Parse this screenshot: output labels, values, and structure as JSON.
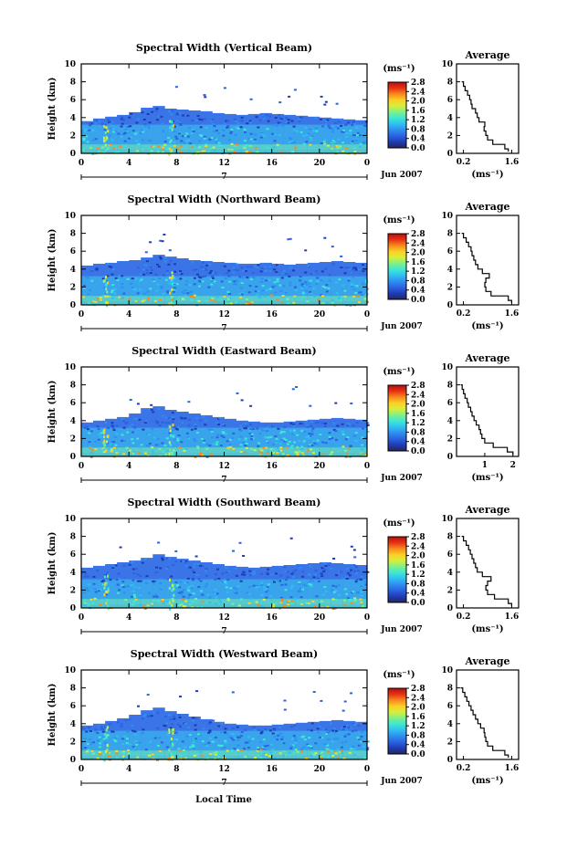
{
  "colors": {
    "scale": [
      "#26265a",
      "#1e3cb4",
      "#2b62e0",
      "#2f8ef0",
      "#30bff2",
      "#3ee8d2",
      "#7ef08a",
      "#d6ef3a",
      "#fbd028",
      "#f88a1c",
      "#e63214",
      "#b80e0e"
    ],
    "echo_low": "#3a74e6",
    "echo_mid": "#3ab4ee",
    "echo_high": "#5ed6c4"
  },
  "colorbar": {
    "unit": "(ms⁻¹)",
    "ticks": [
      "2.8",
      "2.4",
      "2.0",
      "1.6",
      "1.2",
      "0.8",
      "0.4",
      "0.0"
    ]
  },
  "profile": {
    "title": "Average",
    "unit": "(ms⁻¹)"
  },
  "time_axis": {
    "date_label": "Jun 2007",
    "day_label": "7",
    "xlabel": "Local Time"
  },
  "chart_data": [
    {
      "type": "heatmap",
      "title": "Spectral Width (Vertical Beam)",
      "ylabel": "Height (km)",
      "x_ticks": [
        "0",
        "4",
        "8",
        "12",
        "16",
        "20",
        "0"
      ],
      "y_ticks": [
        "0",
        "2",
        "4",
        "6",
        "8",
        "10"
      ],
      "xlim": [
        0,
        24
      ],
      "ylim": [
        0,
        10
      ],
      "echo_top_km": [
        3.6,
        3.9,
        4.1,
        4.3,
        4.6,
        5.1,
        5.3,
        5.0,
        4.9,
        4.8,
        4.7,
        4.5,
        4.4,
        4.3,
        4.4,
        4.5,
        4.4,
        4.3,
        4.2,
        4.1,
        4.0,
        3.9,
        3.8,
        3.7
      ],
      "profile_x_ticks": [
        "0.2",
        "1.6"
      ],
      "profile_xlim": [
        0,
        1.8
      ],
      "profile": {
        "height_km": [
          0.2,
          0.5,
          1.0,
          1.5,
          2.0,
          2.5,
          3.0,
          3.5,
          4.0,
          4.5,
          5.0,
          5.5,
          6.0,
          6.5,
          7.0,
          7.5,
          8.0
        ],
        "width_ms": [
          1.5,
          1.4,
          1.05,
          0.9,
          0.85,
          0.8,
          0.82,
          0.65,
          0.6,
          0.55,
          0.45,
          0.42,
          0.38,
          0.32,
          0.25,
          0.2,
          0.15
        ]
      }
    },
    {
      "type": "heatmap",
      "title": "Spectral Width (Northward Beam)",
      "ylabel": "Height (km)",
      "x_ticks": [
        "0",
        "4",
        "8",
        "12",
        "16",
        "20",
        "0"
      ],
      "y_ticks": [
        "0",
        "2",
        "4",
        "6",
        "8",
        "10"
      ],
      "xlim": [
        0,
        24
      ],
      "ylim": [
        0,
        10
      ],
      "echo_top_km": [
        4.4,
        4.6,
        4.7,
        4.9,
        5.0,
        5.3,
        5.6,
        5.4,
        5.2,
        5.0,
        4.9,
        4.8,
        4.7,
        4.6,
        4.6,
        4.7,
        4.6,
        4.5,
        4.6,
        4.7,
        4.8,
        4.9,
        4.8,
        4.7
      ],
      "profile_x_ticks": [
        "0.2",
        "1.6"
      ],
      "profile_xlim": [
        0,
        1.8
      ],
      "profile": {
        "height_km": [
          0.2,
          0.5,
          1.0,
          1.5,
          2.0,
          2.5,
          3.0,
          3.5,
          4.0,
          4.5,
          5.0,
          5.5,
          6.0,
          6.5,
          7.0,
          7.5,
          8.0
        ],
        "width_ms": [
          1.6,
          1.5,
          1.0,
          0.85,
          0.82,
          0.85,
          0.95,
          0.75,
          0.62,
          0.55,
          0.5,
          0.45,
          0.42,
          0.35,
          0.28,
          0.2,
          0.15
        ]
      }
    },
    {
      "type": "heatmap",
      "title": "Spectral Width (Eastward Beam)",
      "ylabel": "Height (km)",
      "x_ticks": [
        "0",
        "4",
        "8",
        "12",
        "16",
        "20",
        "0"
      ],
      "y_ticks": [
        "0",
        "2",
        "4",
        "6",
        "8",
        "10"
      ],
      "xlim": [
        0,
        24
      ],
      "ylim": [
        0,
        10
      ],
      "echo_top_km": [
        3.8,
        4.0,
        4.2,
        4.4,
        4.8,
        5.4,
        5.6,
        5.2,
        5.0,
        4.8,
        4.6,
        4.4,
        4.2,
        4.0,
        3.9,
        3.8,
        3.8,
        3.9,
        4.0,
        4.1,
        4.2,
        4.3,
        4.2,
        4.1
      ],
      "profile_x_ticks": [
        "1",
        "2"
      ],
      "profile_xlim": [
        0,
        2.2
      ],
      "profile": {
        "height_km": [
          0.2,
          0.5,
          1.0,
          1.5,
          2.0,
          2.5,
          3.0,
          3.5,
          4.0,
          4.5,
          5.0,
          5.5,
          6.0,
          6.5,
          7.0,
          7.5,
          8.0
        ],
        "width_ms": [
          2.0,
          1.8,
          1.3,
          1.0,
          0.9,
          0.85,
          0.8,
          0.7,
          0.62,
          0.55,
          0.5,
          0.42,
          0.38,
          0.3,
          0.25,
          0.2,
          0.15
        ]
      }
    },
    {
      "type": "heatmap",
      "title": "Spectral Width (Southward Beam)",
      "ylabel": "Height (km)",
      "x_ticks": [
        "0",
        "4",
        "8",
        "12",
        "16",
        "20",
        "0"
      ],
      "y_ticks": [
        "0",
        "2",
        "4",
        "6",
        "8",
        "10"
      ],
      "xlim": [
        0,
        24
      ],
      "ylim": [
        0,
        10
      ],
      "echo_top_km": [
        4.5,
        4.7,
        4.9,
        5.1,
        5.3,
        5.6,
        6.0,
        5.7,
        5.5,
        5.3,
        5.1,
        4.9,
        4.7,
        4.6,
        4.5,
        4.6,
        4.7,
        4.8,
        4.9,
        5.0,
        5.1,
        5.0,
        4.9,
        4.8
      ],
      "profile_x_ticks": [
        "0.2",
        "1.6"
      ],
      "profile_xlim": [
        0,
        1.8
      ],
      "profile": {
        "height_km": [
          0.2,
          0.5,
          1.0,
          1.5,
          2.0,
          2.5,
          3.0,
          3.5,
          4.0,
          4.5,
          5.0,
          5.5,
          6.0,
          6.5,
          7.0,
          7.5,
          8.0
        ],
        "width_ms": [
          1.6,
          1.5,
          1.1,
          0.9,
          0.85,
          0.9,
          1.0,
          0.75,
          0.6,
          0.55,
          0.5,
          0.45,
          0.4,
          0.35,
          0.28,
          0.2,
          0.15
        ]
      }
    },
    {
      "type": "heatmap",
      "title": "Spectral Width (Westward Beam)",
      "ylabel": "Height (km)",
      "x_ticks": [
        "0",
        "4",
        "8",
        "12",
        "16",
        "20",
        "0"
      ],
      "y_ticks": [
        "0",
        "2",
        "4",
        "6",
        "8",
        "10"
      ],
      "xlim": [
        0,
        24
      ],
      "ylim": [
        0,
        10
      ],
      "echo_top_km": [
        3.8,
        4.0,
        4.3,
        4.6,
        5.0,
        5.5,
        5.8,
        5.4,
        5.1,
        4.8,
        4.5,
        4.2,
        4.0,
        3.9,
        3.8,
        3.8,
        3.9,
        4.0,
        4.1,
        4.2,
        4.3,
        4.4,
        4.3,
        4.2
      ],
      "profile_x_ticks": [
        "0.2",
        "1.6"
      ],
      "profile_xlim": [
        0,
        1.8
      ],
      "profile": {
        "height_km": [
          0.2,
          0.5,
          1.0,
          1.5,
          2.0,
          2.5,
          3.0,
          3.5,
          4.0,
          4.5,
          5.0,
          5.5,
          6.0,
          6.5,
          7.0,
          7.5,
          8.0
        ],
        "width_ms": [
          1.5,
          1.4,
          1.05,
          0.9,
          0.85,
          0.82,
          0.8,
          0.7,
          0.62,
          0.55,
          0.48,
          0.42,
          0.36,
          0.3,
          0.24,
          0.18,
          0.12
        ]
      }
    }
  ]
}
